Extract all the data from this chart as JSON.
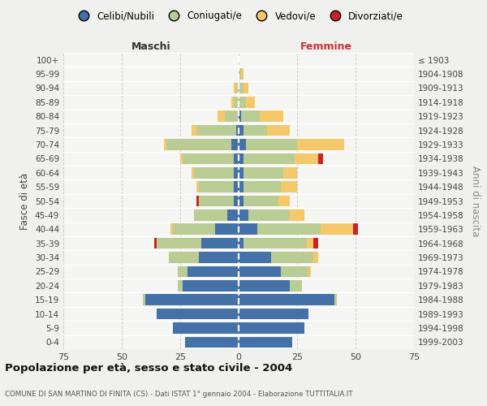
{
  "age_groups": [
    "0-4",
    "5-9",
    "10-14",
    "15-19",
    "20-24",
    "25-29",
    "30-34",
    "35-39",
    "40-44",
    "45-49",
    "50-54",
    "55-59",
    "60-64",
    "65-69",
    "70-74",
    "75-79",
    "80-84",
    "85-89",
    "90-94",
    "95-99",
    "100+"
  ],
  "birth_years": [
    "1999-2003",
    "1994-1998",
    "1989-1993",
    "1984-1988",
    "1979-1983",
    "1974-1978",
    "1969-1973",
    "1964-1968",
    "1959-1963",
    "1954-1958",
    "1949-1953",
    "1944-1948",
    "1939-1943",
    "1934-1938",
    "1929-1933",
    "1924-1928",
    "1919-1923",
    "1914-1918",
    "1909-1913",
    "1904-1908",
    "≤ 1903"
  ],
  "maschi": {
    "celibi": [
      23,
      28,
      35,
      40,
      24,
      22,
      17,
      16,
      10,
      5,
      2,
      2,
      2,
      2,
      3,
      1,
      0,
      0,
      0,
      0,
      0
    ],
    "coniugati": [
      0,
      0,
      0,
      1,
      2,
      4,
      13,
      19,
      18,
      14,
      15,
      15,
      17,
      22,
      28,
      17,
      6,
      2,
      1,
      0,
      0
    ],
    "vedovi": [
      0,
      0,
      0,
      0,
      0,
      0,
      0,
      0,
      1,
      0,
      0,
      1,
      1,
      1,
      1,
      2,
      3,
      1,
      1,
      0,
      0
    ],
    "divorziati": [
      0,
      0,
      0,
      0,
      0,
      0,
      0,
      1,
      0,
      0,
      1,
      0,
      0,
      0,
      0,
      0,
      0,
      0,
      0,
      0,
      0
    ]
  },
  "femmine": {
    "nubili": [
      23,
      28,
      30,
      41,
      22,
      18,
      14,
      2,
      8,
      4,
      2,
      2,
      2,
      2,
      3,
      2,
      1,
      0,
      0,
      0,
      0
    ],
    "coniugate": [
      0,
      0,
      0,
      1,
      5,
      12,
      18,
      27,
      27,
      18,
      15,
      16,
      17,
      22,
      22,
      10,
      8,
      3,
      2,
      1,
      0
    ],
    "vedove": [
      0,
      0,
      0,
      0,
      0,
      1,
      2,
      3,
      14,
      6,
      5,
      7,
      6,
      10,
      20,
      10,
      10,
      4,
      2,
      1,
      0
    ],
    "divorziate": [
      0,
      0,
      0,
      0,
      0,
      0,
      0,
      2,
      2,
      0,
      0,
      0,
      0,
      2,
      0,
      0,
      0,
      0,
      0,
      0,
      0
    ]
  },
  "colors": {
    "celibi": "#4472A8",
    "coniugati": "#B8CC94",
    "vedovi": "#F5C96A",
    "divorziati": "#CC2222"
  },
  "xlim": 75,
  "title": "Popolazione per età, sesso e stato civile - 2004",
  "subtitle": "COMUNE DI SAN MARTINO DI FINITA (CS) - Dati ISTAT 1° gennaio 2004 - Elaborazione TUTTITALIA.IT",
  "ylabel_left": "Fasce di età",
  "ylabel_right": "Anni di nascita",
  "xlabel_maschi": "Maschi",
  "xlabel_femmine": "Femmine",
  "bg_color": "#f0f0ef",
  "plot_bg": "#f5f5f3"
}
